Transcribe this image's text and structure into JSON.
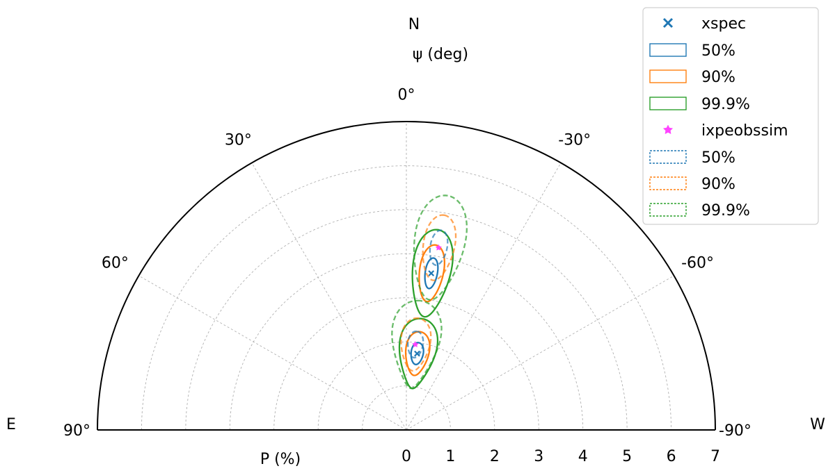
{
  "chart_data": {
    "type": "polar-half",
    "title": "",
    "compass": {
      "north": "N",
      "east": "E",
      "west": "W"
    },
    "angle_label": "ψ (deg)",
    "radius_label": "P (%)",
    "angle_range_deg": [
      -90,
      90
    ],
    "angle_ticks": [
      {
        "deg": 0,
        "label": "0°"
      },
      {
        "deg": 30,
        "label": "30°"
      },
      {
        "deg": -30,
        "label": "-30°"
      },
      {
        "deg": 60,
        "label": "60°"
      },
      {
        "deg": -60,
        "label": "-60°"
      },
      {
        "deg": 90,
        "label": "90°"
      },
      {
        "deg": -90,
        "label": "-90°"
      }
    ],
    "radius_range": [
      0,
      7
    ],
    "radius_ticks": [
      0,
      1,
      2,
      3,
      4,
      5,
      6,
      7
    ],
    "grid": true,
    "legend": {
      "placement": "top-right",
      "entries": [
        {
          "key": "xspec_marker",
          "label": "xspec",
          "kind": "marker-x",
          "color": "#1f77b4"
        },
        {
          "key": "xspec_50",
          "label": "50%",
          "kind": "box-solid",
          "color": "#1f77b4"
        },
        {
          "key": "xspec_90",
          "label": "90%",
          "kind": "box-solid",
          "color": "#ff7f0e"
        },
        {
          "key": "xspec_999",
          "label": "99.9%",
          "kind": "box-solid",
          "color": "#2ca02c"
        },
        {
          "key": "ixpe_marker",
          "label": "ixpeobssim",
          "kind": "marker-star",
          "color": "#ff44ff"
        },
        {
          "key": "ixpe_50",
          "label": "50%",
          "kind": "box-dashed",
          "color": "#1f77b4"
        },
        {
          "key": "ixpe_90",
          "label": "90%",
          "kind": "box-dashed",
          "color": "#ff7f0e"
        },
        {
          "key": "ixpe_999",
          "label": "99.9%",
          "kind": "box-dashed",
          "color": "#2ca02c"
        }
      ]
    },
    "colors": {
      "c50": "#1f77b4",
      "c90": "#ff7f0e",
      "c999": "#2ca02c",
      "ixpe_marker": "#ff44ff",
      "xspec_marker": "#1f77b4"
    },
    "series": [
      {
        "name": "xspec",
        "style": "solid",
        "points": [
          {
            "P": 3.6,
            "psi": -9,
            "contours": [
              {
                "level": "50%",
                "dP": 0.35,
                "dpsi": 2.2
              },
              {
                "level": "90%",
                "dP": 0.65,
                "dpsi": 4.3
              },
              {
                "level": "99.9%",
                "dP": 1.0,
                "dpsi": 6.8
              }
            ]
          },
          {
            "P": 1.75,
            "psi": -8,
            "contours": [
              {
                "level": "50%",
                "dP": 0.25,
                "dpsi": 4.5
              },
              {
                "level": "90%",
                "dP": 0.5,
                "dpsi": 8.5
              },
              {
                "level": "99.9%",
                "dP": 0.8,
                "dpsi": 13
              }
            ]
          }
        ]
      },
      {
        "name": "ixpeobssim",
        "style": "dashed",
        "points": [
          {
            "P": 4.2,
            "psi": -10,
            "contours": [
              {
                "level": "50%",
                "dP": 0.4,
                "dpsi": 2.6
              },
              {
                "level": "90%",
                "dP": 0.75,
                "dpsi": 4.8
              },
              {
                "level": "99.9%",
                "dP": 1.2,
                "dpsi": 7.6
              }
            ]
          },
          {
            "P": 1.95,
            "psi": -6,
            "contours": [
              {
                "level": "50%",
                "dP": 0.3,
                "dpsi": 5
              },
              {
                "level": "90%",
                "dP": 0.6,
                "dpsi": 9.5
              },
              {
                "level": "99.9%",
                "dP": 1.0,
                "dpsi": 15
              }
            ]
          }
        ]
      }
    ]
  }
}
